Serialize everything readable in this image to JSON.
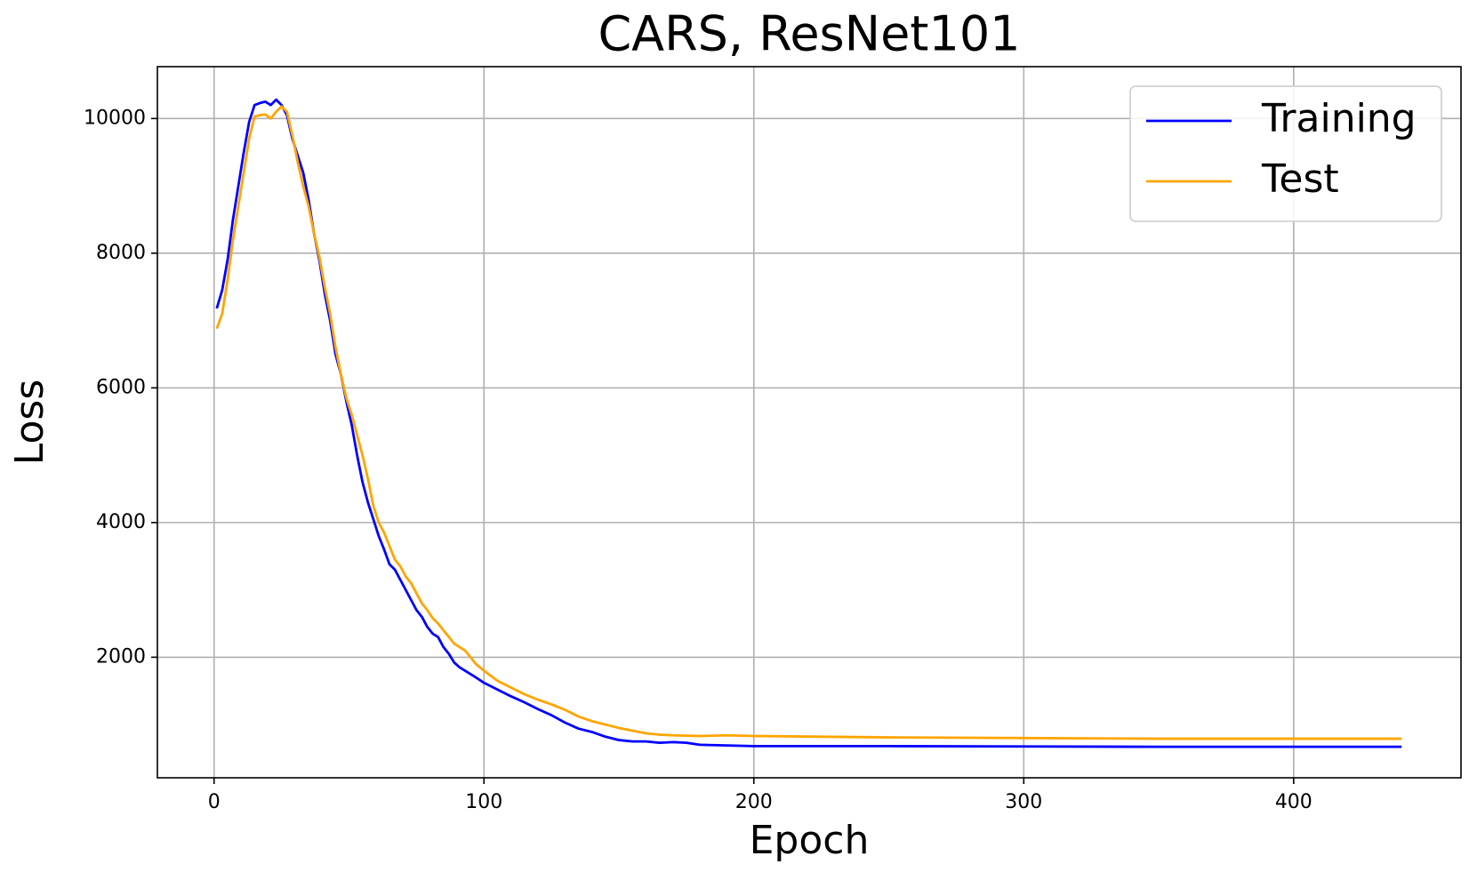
{
  "chart_data": {
    "type": "line",
    "title": "CARS, ResNet101",
    "x_label": "Epoch",
    "y_label": "Loss",
    "x": [
      1,
      3,
      5,
      7,
      9,
      11,
      13,
      15,
      17,
      19,
      21,
      23,
      25,
      27,
      29,
      31,
      33,
      35,
      37,
      39,
      41,
      43,
      45,
      47,
      49,
      51,
      53,
      55,
      57,
      59,
      61,
      63,
      65,
      67,
      69,
      71,
      73,
      75,
      77,
      79,
      81,
      83,
      85,
      87,
      89,
      91,
      93,
      95,
      97,
      100,
      105,
      110,
      115,
      120,
      125,
      130,
      135,
      140,
      145,
      150,
      155,
      160,
      165,
      170,
      175,
      180,
      190,
      200,
      250,
      300,
      350,
      400,
      440
    ],
    "series": [
      {
        "name": "Training",
        "color": "#0000ff",
        "values": [
          7180,
          7450,
          7900,
          8500,
          9000,
          9500,
          9950,
          10200,
          10230,
          10250,
          10200,
          10280,
          10200,
          10050,
          9700,
          9450,
          9200,
          8800,
          8300,
          7900,
          7400,
          7000,
          6500,
          6200,
          5800,
          5450,
          5000,
          4600,
          4300,
          4050,
          3800,
          3600,
          3380,
          3300,
          3150,
          3000,
          2850,
          2700,
          2600,
          2450,
          2350,
          2300,
          2150,
          2050,
          1920,
          1850,
          1800,
          1750,
          1700,
          1620,
          1520,
          1420,
          1330,
          1230,
          1140,
          1030,
          940,
          890,
          820,
          770,
          750,
          750,
          730,
          740,
          730,
          700,
          690,
          680,
          680,
          675,
          670,
          670,
          670
        ]
      },
      {
        "name": "Test",
        "color": "#ffa500",
        "values": [
          6880,
          7100,
          7600,
          8200,
          8700,
          9200,
          9700,
          10030,
          10050,
          10060,
          10000,
          10100,
          10180,
          10100,
          9750,
          9350,
          9000,
          8700,
          8300,
          7950,
          7500,
          7100,
          6600,
          6200,
          5850,
          5600,
          5300,
          5000,
          4650,
          4250,
          4000,
          3850,
          3650,
          3450,
          3350,
          3200,
          3100,
          2950,
          2800,
          2700,
          2580,
          2500,
          2400,
          2300,
          2200,
          2150,
          2100,
          2000,
          1900,
          1800,
          1650,
          1550,
          1450,
          1370,
          1300,
          1220,
          1120,
          1050,
          1000,
          950,
          910,
          870,
          850,
          840,
          835,
          830,
          840,
          830,
          810,
          800,
          790,
          790,
          790
        ]
      }
    ],
    "xlim": [
      -21,
      462
    ],
    "ylim": [
      210,
      10770
    ],
    "xticks": [
      0,
      100,
      200,
      300,
      400
    ],
    "yticks": [
      2000,
      4000,
      6000,
      8000,
      10000
    ],
    "grid": true,
    "legend": "upper right"
  }
}
